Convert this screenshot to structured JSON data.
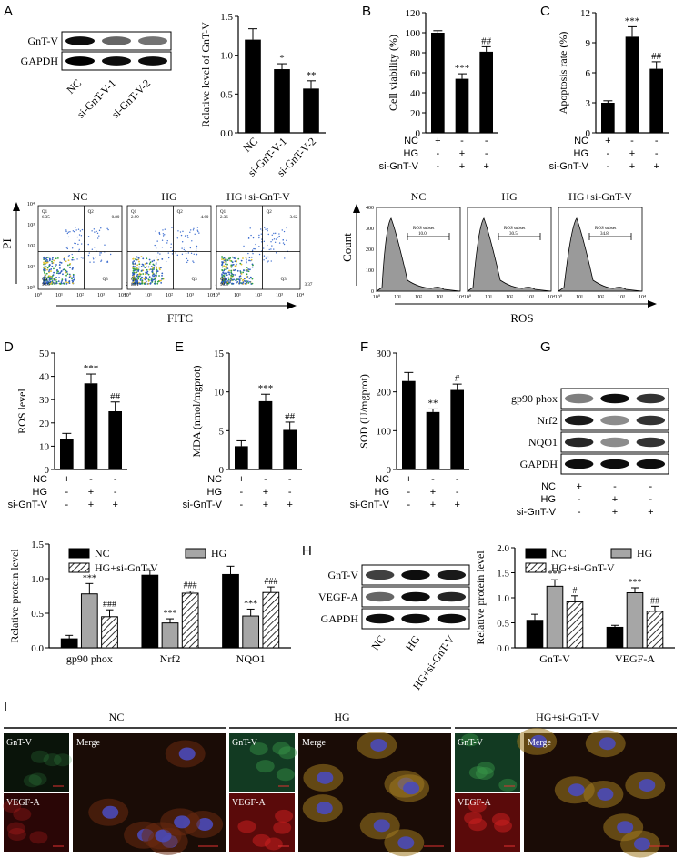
{
  "panel_letters": [
    "A",
    "B",
    "C",
    "D",
    "E",
    "F",
    "G",
    "H",
    "I"
  ],
  "condition_table": {
    "rows": [
      "NC",
      "HG",
      "si-GnT-V"
    ],
    "cols": [
      [
        "+",
        "-",
        "-"
      ],
      [
        "-",
        "+",
        "+"
      ],
      [
        "-",
        "-",
        "+"
      ]
    ]
  },
  "panelA": {
    "blot_rows": [
      "GnT-V",
      "GAPDH"
    ],
    "lane_labels": [
      "NC",
      "si-GnT-V-1",
      "si-GnT-V-2"
    ],
    "chart_data": {
      "type": "bar",
      "ylabel": "Relative level of GnT-V",
      "categories": [
        "NC",
        "si-GnT-V-1",
        "si-GnT-V-2"
      ],
      "values": [
        1.2,
        0.82,
        0.57
      ],
      "errors": [
        0.14,
        0.07,
        0.1
      ],
      "sig": [
        "",
        "*",
        "**"
      ],
      "yticks": [
        "0.0",
        "0.5",
        "1.0",
        "1.5"
      ],
      "ylim": [
        0,
        1.5
      ]
    }
  },
  "panelB": {
    "chart_data": {
      "type": "bar",
      "ylabel": "Cell viability (%)",
      "values": [
        100,
        54,
        81
      ],
      "errors": [
        2,
        5,
        5
      ],
      "sig": [
        "",
        "***",
        "##"
      ],
      "yticks": [
        "0",
        "20",
        "40",
        "60",
        "80",
        "100",
        "120"
      ],
      "ylim": [
        0,
        120
      ]
    }
  },
  "panelC": {
    "chart_data": {
      "type": "bar",
      "ylabel": "Apoptosis rate (%)",
      "values": [
        3,
        9.6,
        6.4
      ],
      "errors": [
        0.2,
        1,
        0.7
      ],
      "sig": [
        "",
        "***",
        "##"
      ],
      "yticks": [
        "0",
        "3",
        "6",
        "9",
        "12"
      ],
      "ylim": [
        0,
        12
      ]
    }
  },
  "flow": {
    "groups": [
      "NC",
      "HG",
      "HG+si-GnT-V"
    ],
    "ylabel": "PI",
    "xlabel": "FITC",
    "quadrants": [
      [
        "Q1",
        "6.35",
        "Q2",
        "0.80",
        "Q4",
        "90.6",
        "Q3",
        "2.19"
      ],
      [
        "Q1",
        "2.99",
        "Q2",
        "4.60",
        "Q4",
        "88.1",
        "Q3",
        "4.34"
      ],
      [
        "Q1",
        "2.36",
        "Q2",
        "3.62",
        "Q4",
        "90.3",
        "Q3",
        "3.37"
      ]
    ],
    "decades": [
      "10⁰",
      "10¹",
      "10²",
      "10³",
      "10⁴"
    ]
  },
  "ros_hist": {
    "groups": [
      "NC",
      "HG",
      "HG+si-GnT-V"
    ],
    "ylabel": "Count",
    "xlabel": "ROS",
    "gate_label": "ROS subset",
    "gate_values": [
      "10.0",
      "30.5",
      "34.8"
    ],
    "yticks": [
      "0",
      "100",
      "200",
      "300",
      "400"
    ]
  },
  "panelD": {
    "chart_data": {
      "type": "bar",
      "ylabel": "ROS level",
      "values": [
        13,
        37,
        25
      ],
      "errors": [
        2.5,
        4,
        4
      ],
      "sig": [
        "",
        "***",
        "##"
      ],
      "yticks": [
        "0",
        "10",
        "20",
        "30",
        "40",
        "50"
      ],
      "ylim": [
        0,
        50
      ]
    }
  },
  "panelE": {
    "chart_data": {
      "type": "bar",
      "ylabel": "MDA (nmol/mgprot)",
      "values": [
        3,
        8.8,
        5.1
      ],
      "errors": [
        0.7,
        0.9,
        1
      ],
      "sig": [
        "",
        "***",
        "##"
      ],
      "yticks": [
        "0",
        "5",
        "10",
        "15"
      ],
      "ylim": [
        0,
        15
      ]
    }
  },
  "panelF": {
    "chart_data": {
      "type": "bar",
      "ylabel": "SOD (U/mgprot)",
      "values": [
        228,
        148,
        205
      ],
      "errors": [
        22,
        8,
        15
      ],
      "sig": [
        "",
        "**",
        "#"
      ],
      "yticks": [
        "0",
        "100",
        "200",
        "300"
      ],
      "ylim": [
        0,
        300
      ]
    }
  },
  "panelG": {
    "blot_rows": [
      "gp90 phox",
      "Nrf2",
      "NQO1",
      "GAPDH"
    ],
    "chart_data": {
      "type": "bar",
      "ylabel": "Relative protein level",
      "categories": [
        "gp90 phox",
        "Nrf2",
        "NQO1"
      ],
      "series": [
        {
          "name": "NC",
          "values": [
            0.13,
            1.05,
            1.06
          ]
        },
        {
          "name": "HG",
          "values": [
            0.78,
            0.36,
            0.46
          ]
        },
        {
          "name": "HG+si-GnT-V",
          "values": [
            0.45,
            0.79,
            0.8
          ]
        }
      ],
      "errors": [
        [
          0.05,
          0.07,
          0.12
        ],
        [
          0.15,
          0.06,
          0.1
        ],
        [
          0.1,
          0.03,
          0.08
        ]
      ],
      "sig": [
        [
          "",
          "***",
          "###"
        ],
        [
          "",
          "***",
          "###"
        ],
        [
          "",
          "***",
          "###"
        ]
      ],
      "yticks": [
        "0.0",
        "0.5",
        "1.0",
        "1.5"
      ],
      "ylim": [
        0,
        1.5
      ]
    }
  },
  "panelH": {
    "blot_rows": [
      "GnT-V",
      "VEGF-A",
      "GAPDH"
    ],
    "lane_labels": [
      "NC",
      "HG",
      "HG+si-GnT-V"
    ],
    "chart_data": {
      "type": "bar",
      "ylabel": "Relative protein level",
      "categories": [
        "GnT-V",
        "VEGF-A"
      ],
      "series": [
        {
          "name": "NC",
          "values": [
            0.55,
            0.41
          ]
        },
        {
          "name": "HG",
          "values": [
            1.23,
            1.1
          ]
        },
        {
          "name": "HG+si-GnT-V",
          "values": [
            0.92,
            0.73
          ]
        }
      ],
      "errors": [
        [
          0.12,
          0.04
        ],
        [
          0.13,
          0.1
        ],
        [
          0.12,
          0.1
        ]
      ],
      "sig": [
        [
          "",
          "***",
          "#"
        ],
        [
          "",
          "***",
          "##"
        ]
      ],
      "yticks": [
        "0.0",
        "0.5",
        "1.0",
        "1.5",
        "2.0"
      ],
      "ylim": [
        0,
        2.0
      ]
    }
  },
  "panelI": {
    "groups": [
      "NC",
      "HG",
      "HG+si-GnT-V"
    ],
    "tile_labels": [
      "GnT-V",
      "VEGF-A",
      "Merge"
    ]
  },
  "colors": {
    "nc": "#000000",
    "hg": "#a6a6a6",
    "si": "hatched"
  }
}
